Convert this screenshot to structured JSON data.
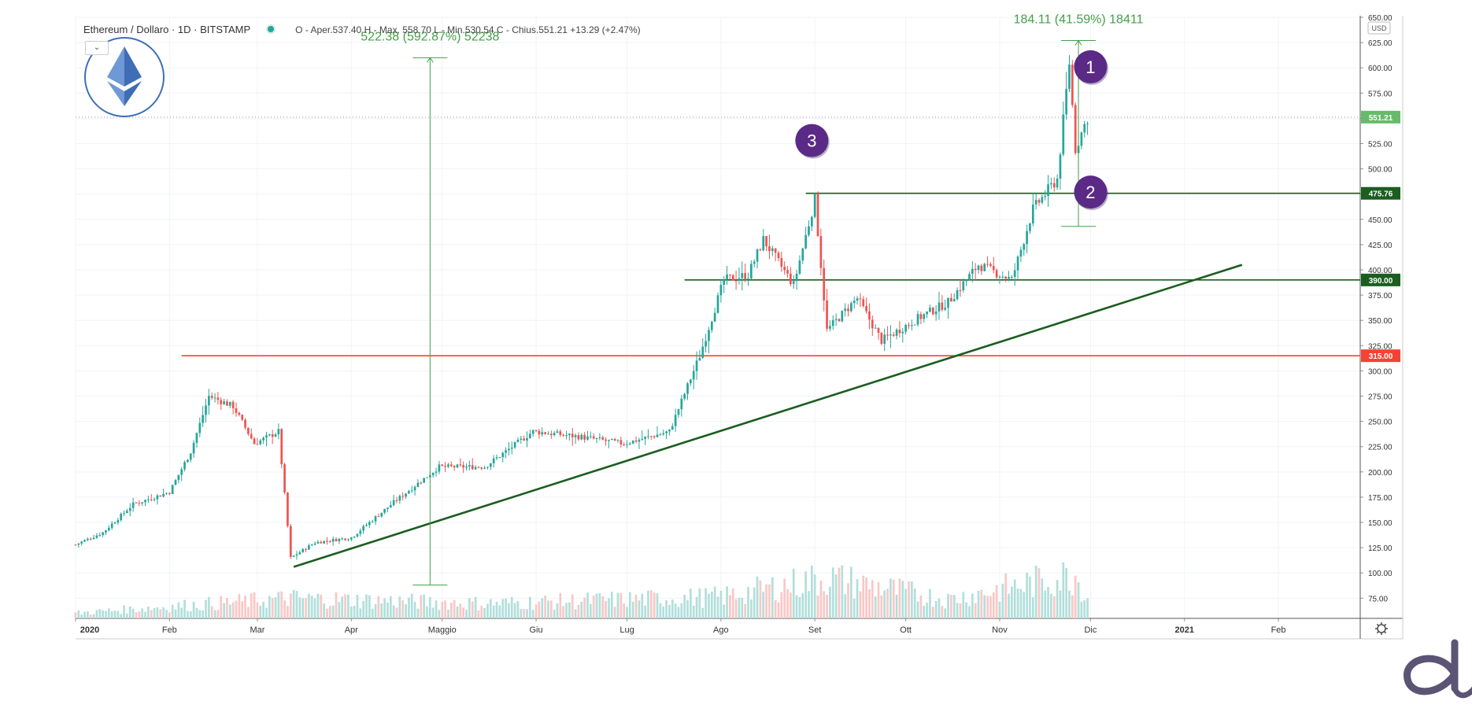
{
  "header": {
    "symbol": "Ethereum / Dollaro · 1D · BITSTAMP",
    "ohlc": "O - Aper.537.40  H - Max. 558.70  L - Min.530.54  C - Chius.551.21  +13.29 (+2.47%)",
    "collapse_icon": "chevron-down-icon"
  },
  "chart_data": {
    "type": "candlestick",
    "title": "Ethereum / Dollaro · 1D · BITSTAMP",
    "currency": "USD",
    "x_labels": [
      "2020",
      "Feb",
      "Mar",
      "Apr",
      "Maggio",
      "Giu",
      "Lug",
      "Ago",
      "Set",
      "Ott",
      "Nov",
      "Dic",
      "2021",
      "Feb"
    ],
    "x_range": [
      "2020-01-01",
      "2021-02-28"
    ],
    "y_ticks": [
      75,
      100,
      125,
      150,
      175,
      200,
      225,
      250,
      275,
      300,
      325,
      350,
      375,
      400,
      425,
      450,
      475,
      500,
      525,
      550,
      575,
      600,
      625,
      650
    ],
    "ylim": [
      55,
      650
    ],
    "last_price": 551.21,
    "price_path": [
      [
        "2020-01-01",
        128
      ],
      [
        "2020-01-10",
        140
      ],
      [
        "2020-01-20",
        168
      ],
      [
        "2020-02-01",
        180
      ],
      [
        "2020-02-08",
        220
      ],
      [
        "2020-02-14",
        275
      ],
      [
        "2020-02-22",
        265
      ],
      [
        "2020-02-29",
        228
      ],
      [
        "2020-03-08",
        240
      ],
      [
        "2020-03-12",
        115
      ],
      [
        "2020-03-20",
        130
      ],
      [
        "2020-04-01",
        135
      ],
      [
        "2020-04-15",
        170
      ],
      [
        "2020-04-30",
        205
      ],
      [
        "2020-05-15",
        205
      ],
      [
        "2020-05-31",
        240
      ],
      [
        "2020-06-15",
        235
      ],
      [
        "2020-06-30",
        228
      ],
      [
        "2020-07-15",
        240
      ],
      [
        "2020-07-25",
        315
      ],
      [
        "2020-08-02",
        390
      ],
      [
        "2020-08-10",
        395
      ],
      [
        "2020-08-15",
        430
      ],
      [
        "2020-08-25",
        385
      ],
      [
        "2020-09-01",
        470
      ],
      [
        "2020-09-05",
        340
      ],
      [
        "2020-09-15",
        372
      ],
      [
        "2020-09-23",
        330
      ],
      [
        "2020-10-05",
        352
      ],
      [
        "2020-10-15",
        368
      ],
      [
        "2020-10-25",
        405
      ],
      [
        "2020-11-05",
        390
      ],
      [
        "2020-11-12",
        460
      ],
      [
        "2020-11-20",
        490
      ],
      [
        "2020-11-24",
        605
      ],
      [
        "2020-11-26",
        520
      ],
      [
        "2020-11-30",
        551
      ]
    ],
    "volume_path": [
      [
        "2020-01-01",
        8
      ],
      [
        "2020-03-12",
        30
      ],
      [
        "2020-05-15",
        22
      ],
      [
        "2020-08-01",
        32
      ],
      [
        "2020-09-05",
        60
      ],
      [
        "2020-10-15",
        28
      ],
      [
        "2020-11-26",
        65
      ],
      [
        "2020-11-30",
        30
      ]
    ],
    "horizontal_lines": [
      {
        "price": 475.76,
        "label": "475.76",
        "color": "#1b5e20",
        "start": "2020-08-29"
      },
      {
        "price": 390.0,
        "label": "390.00",
        "color": "#1b5e20",
        "start": "2020-07-20"
      },
      {
        "price": 315.0,
        "label": "315.00",
        "color": "#f44336",
        "start": "2020-02-05"
      }
    ],
    "trendline": {
      "start": [
        "2020-03-13",
        106
      ],
      "end": [
        "2021-01-20",
        405
      ],
      "color": "#1b5e20"
    },
    "measures": [
      {
        "label": "522.38 (592.87%) 52238",
        "date": "2020-04-27",
        "from": 88,
        "to": 610,
        "color": "#43a047"
      },
      {
        "label": "184.11 (41.59%) 18411",
        "date": "2020-11-27",
        "from": 443,
        "to": 627,
        "color": "#43a047"
      }
    ],
    "markers": [
      {
        "label": "1",
        "date": "2020-12-01",
        "price": 601
      },
      {
        "label": "2",
        "date": "2020-12-01",
        "price": 477
      },
      {
        "label": "3",
        "date": "2020-08-31",
        "price": 528
      }
    ],
    "colors": {
      "up": "#26a69a",
      "down": "#ef5350",
      "marker": "#5b2a86",
      "price_tag": "#66bb6a"
    }
  },
  "logo": {
    "name": "ethereum-logo-icon",
    "brand_name": "dl-brand-logo"
  }
}
